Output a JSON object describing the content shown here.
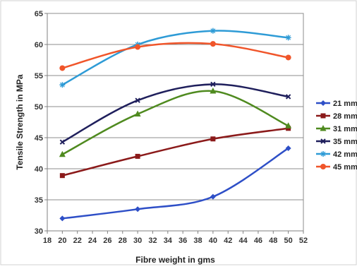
{
  "chart_data": {
    "type": "line",
    "xlabel": "Fibre weight in gms",
    "ylabel": "Tensile Strength in MPa",
    "xlim": [
      18,
      52
    ],
    "ylim": [
      30,
      65
    ],
    "x_ticks": [
      "18",
      "20",
      "22",
      "24",
      "26",
      "28",
      "30",
      "32",
      "34",
      "36",
      "38",
      "40",
      "42",
      "44",
      "46",
      "48",
      "50",
      "52"
    ],
    "y_ticks": [
      "30",
      "35",
      "40",
      "45",
      "50",
      "55",
      "60",
      "65"
    ],
    "grid": "horizontal",
    "legend_position": "right",
    "x": [
      20,
      30,
      40,
      50
    ],
    "series": [
      {
        "name": "21 mm",
        "values": [
          32.0,
          33.5,
          35.5,
          43.3
        ],
        "color": "#2E4FC7",
        "marker": "diamond"
      },
      {
        "name": "28 mm",
        "values": [
          38.9,
          42.0,
          44.8,
          46.5
        ],
        "color": "#8B1A1A",
        "marker": "square"
      },
      {
        "name": "31 mm",
        "values": [
          42.3,
          48.8,
          52.5,
          46.9
        ],
        "color": "#4F8A1F",
        "marker": "triangle"
      },
      {
        "name": "35 mm",
        "values": [
          44.3,
          51.0,
          53.6,
          51.6
        ],
        "color": "#1F1F5C",
        "marker": "x"
      },
      {
        "name": "42 mm",
        "values": [
          53.5,
          60.0,
          62.2,
          61.1
        ],
        "color": "#2E9BD6",
        "marker": "star"
      },
      {
        "name": "45 mm",
        "values": [
          56.2,
          59.6,
          60.1,
          57.9
        ],
        "color": "#F0552A",
        "marker": "circle"
      }
    ]
  }
}
